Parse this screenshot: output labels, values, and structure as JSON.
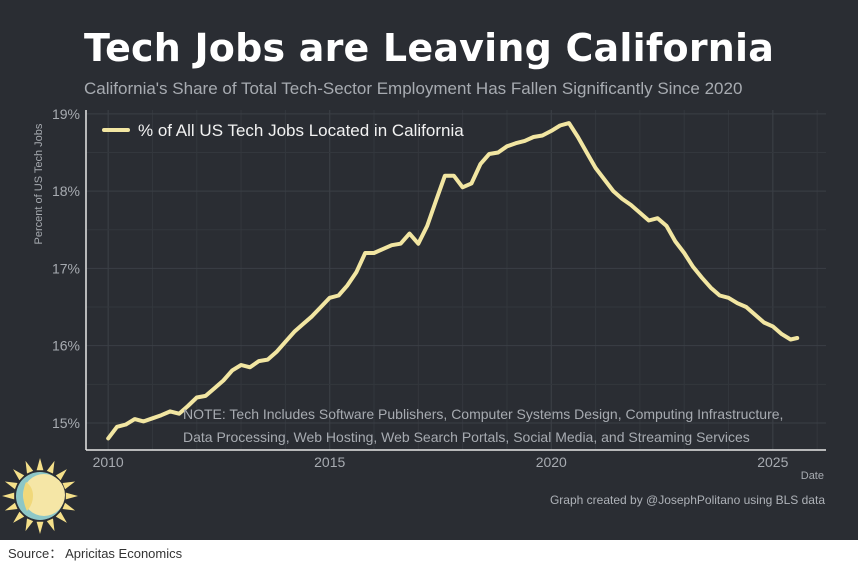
{
  "header": {
    "title": "Tech Jobs are Leaving California",
    "subtitle": "California's Share of Total Tech-Sector Employment Has Fallen Significantly Since 2020"
  },
  "footer": {
    "credit": "Graph created by @JosephPolitano using BLS data",
    "source": "Source： Apricitas Economics"
  },
  "colors": {
    "background": "#2a2d33",
    "series": "#f2e6a2",
    "grid": "#3b3f46",
    "text": "#a7abb1"
  },
  "logo_icon": "sun-logo-icon",
  "chart_data": {
    "type": "line",
    "title": "Tech Jobs are Leaving California",
    "subtitle": "California's Share of Total Tech-Sector Employment Has Fallen Significantly Since 2020",
    "xlabel": "Date",
    "ylabel": "Percent of US Tech Jobs",
    "xlim": [
      2009.5,
      2026.2
    ],
    "ylim": [
      14.65,
      19.05
    ],
    "xticks": [
      2010,
      2015,
      2020,
      2025
    ],
    "xtick_labels": [
      "2010",
      "2015",
      "2020",
      "2025"
    ],
    "yticks": [
      15,
      16,
      17,
      18,
      19
    ],
    "ytick_labels": [
      "15%",
      "16%",
      "17%",
      "18%",
      "19%"
    ],
    "grid": true,
    "legend_position": "top-left",
    "annotation": {
      "line1": "NOTE: Tech Includes Software Publishers, Computer Systems Design, Computing Infrastructure,",
      "line2": "Data Processing, Web Hosting, Web Search Portals, Social Media, and Streaming Services"
    },
    "series": [
      {
        "name": "% of All US Tech Jobs Located in California",
        "x": [
          2010.0,
          2010.2,
          2010.4,
          2010.6,
          2010.8,
          2011.0,
          2011.2,
          2011.4,
          2011.6,
          2011.8,
          2012.0,
          2012.2,
          2012.4,
          2012.6,
          2012.8,
          2013.0,
          2013.2,
          2013.4,
          2013.6,
          2013.8,
          2014.0,
          2014.2,
          2014.4,
          2014.6,
          2014.8,
          2015.0,
          2015.2,
          2015.4,
          2015.6,
          2015.8,
          2016.0,
          2016.2,
          2016.4,
          2016.6,
          2016.8,
          2017.0,
          2017.2,
          2017.4,
          2017.6,
          2017.8,
          2018.0,
          2018.2,
          2018.4,
          2018.6,
          2018.8,
          2019.0,
          2019.2,
          2019.4,
          2019.6,
          2019.8,
          2020.0,
          2020.2,
          2020.4,
          2020.6,
          2020.8,
          2021.0,
          2021.2,
          2021.4,
          2021.6,
          2021.8,
          2022.0,
          2022.2,
          2022.4,
          2022.6,
          2022.8,
          2023.0,
          2023.2,
          2023.4,
          2023.6,
          2023.8,
          2024.0,
          2024.2,
          2024.4,
          2024.6,
          2024.8,
          2025.0,
          2025.2,
          2025.4,
          2025.55
        ],
        "values": [
          14.8,
          14.95,
          14.98,
          15.05,
          15.02,
          15.06,
          15.1,
          15.15,
          15.12,
          15.22,
          15.33,
          15.35,
          15.45,
          15.55,
          15.68,
          15.75,
          15.72,
          15.8,
          15.82,
          15.92,
          16.05,
          16.18,
          16.28,
          16.38,
          16.5,
          16.62,
          16.65,
          16.78,
          16.95,
          17.2,
          17.2,
          17.25,
          17.3,
          17.32,
          17.45,
          17.32,
          17.55,
          17.88,
          18.2,
          18.2,
          18.05,
          18.1,
          18.35,
          18.48,
          18.5,
          18.58,
          18.62,
          18.65,
          18.7,
          18.72,
          18.78,
          18.85,
          18.88,
          18.7,
          18.5,
          18.3,
          18.15,
          18.0,
          17.9,
          17.82,
          17.72,
          17.62,
          17.65,
          17.55,
          17.35,
          17.2,
          17.02,
          16.88,
          16.75,
          16.65,
          16.62,
          16.55,
          16.5,
          16.4,
          16.3,
          16.25,
          16.15,
          16.08,
          16.1
        ]
      }
    ]
  }
}
